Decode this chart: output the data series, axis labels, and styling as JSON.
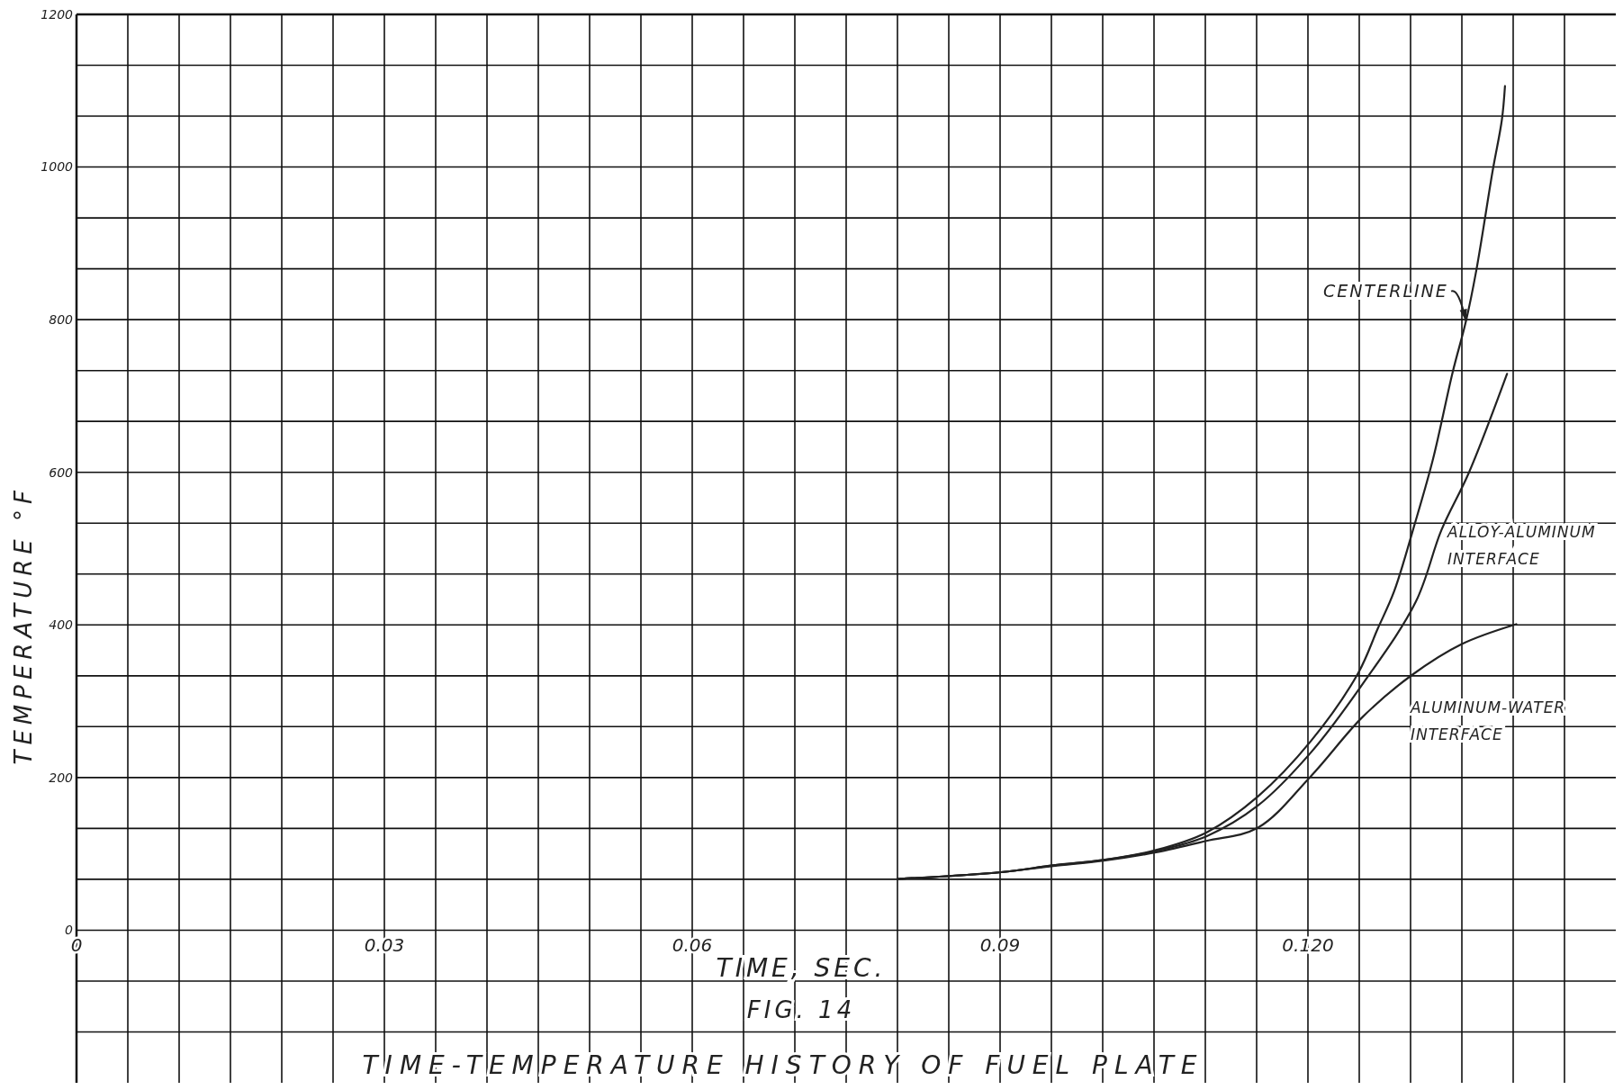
{
  "chart_data": {
    "type": "line",
    "title": "TIME-TEMPERATURE HISTORY OF FUEL PLATE",
    "xlabel": "TIME, SEC.",
    "ylabel": "TEMPERATURE °F",
    "annotations": [
      "FIG. 14"
    ],
    "xlim": [
      0,
      0.15
    ],
    "ylim": [
      -200,
      1200
    ],
    "xticks": [
      0,
      {
        "value": 0.005,
        "label": null
      },
      {
        "value": 0.01,
        "label": null
      },
      {
        "value": 0.015,
        "label": null
      },
      {
        "value": 0.02,
        "label": null
      },
      {
        "value": 0.025,
        "label": null
      },
      0.03,
      {
        "value": 0.035,
        "label": null
      },
      {
        "value": 0.04,
        "label": null
      },
      {
        "value": 0.045,
        "label": null
      },
      {
        "value": 0.05,
        "label": null
      },
      {
        "value": 0.055,
        "label": null
      },
      0.06,
      {
        "value": 0.065,
        "label": null
      },
      {
        "value": 0.07,
        "label": null
      },
      {
        "value": 0.075,
        "label": null
      },
      {
        "value": 0.08,
        "label": null
      },
      {
        "value": 0.085,
        "label": null
      },
      0.09,
      {
        "value": 0.095,
        "label": null
      },
      {
        "value": 0.1,
        "label": null
      },
      {
        "value": 0.105,
        "label": null
      },
      {
        "value": 0.11,
        "label": null
      },
      {
        "value": 0.115,
        "label": null
      },
      {
        "value": 0.12,
        "label": "0.120"
      },
      {
        "value": 0.125,
        "label": null
      },
      {
        "value": 0.13,
        "label": null
      },
      {
        "value": 0.135,
        "label": null
      },
      {
        "value": 0.14,
        "label": null
      },
      {
        "value": 0.145,
        "label": null
      }
    ],
    "yticks": [
      {
        "value": -133.3,
        "label": null
      },
      {
        "value": -66.7,
        "label": null
      },
      0,
      {
        "value": 66.7,
        "label": null
      },
      {
        "value": 133.3,
        "label": null
      },
      200,
      {
        "value": 266.7,
        "label": null
      },
      {
        "value": 333.3,
        "label": null
      },
      400,
      {
        "value": 466.7,
        "label": null
      },
      {
        "value": 533.3,
        "label": null
      },
      600,
      {
        "value": 666.7,
        "label": null
      },
      {
        "value": 733.3,
        "label": null
      },
      800,
      {
        "value": 866.7,
        "label": null
      },
      {
        "value": 933.3,
        "label": null
      },
      1000,
      {
        "value": 1066.7,
        "label": null
      },
      {
        "value": 1133.3,
        "label": null
      },
      1200
    ],
    "grid": true,
    "legend": false,
    "marker": "none",
    "line_style": "solid",
    "series": [
      {
        "name": "CENTERLINE",
        "color": "#222222",
        "x": [
          0.08,
          0.0901,
          0.0952,
          0.1001,
          0.1052,
          0.1101,
          0.1151,
          0.1203,
          0.1249,
          0.1268,
          0.1284,
          0.1304,
          0.1322,
          0.1341,
          0.1354,
          0.1364,
          0.138,
          0.1389,
          0.1392
        ],
        "values": [
          67,
          76,
          85,
          92,
          105,
          128,
          175,
          248,
          337,
          395,
          444,
          532,
          618,
          731,
          798,
          864,
          995,
          1062,
          1106
        ]
      },
      {
        "name": "ALLOY-ALUMINUM INTERFACE",
        "color": "#222222",
        "x": [
          0.08,
          0.0901,
          0.0952,
          0.1001,
          0.1052,
          0.1101,
          0.1151,
          0.1203,
          0.1253,
          0.1305,
          0.133,
          0.1357,
          0.1394
        ],
        "values": [
          67,
          76,
          85,
          92,
          104,
          123,
          163,
          233,
          322,
          430,
          524,
          600,
          729
        ]
      },
      {
        "name": "ALUMINUM-WATER INTERFACE",
        "color": "#222222",
        "x": [
          0.08,
          0.0901,
          0.0952,
          0.1001,
          0.1052,
          0.1101,
          0.1151,
          0.1203,
          0.1253,
          0.1301,
          0.135,
          0.1403
        ],
        "values": [
          67,
          76,
          84,
          91,
          102,
          117,
          134,
          202,
          279,
          334,
          375,
          401
        ]
      }
    ]
  }
}
